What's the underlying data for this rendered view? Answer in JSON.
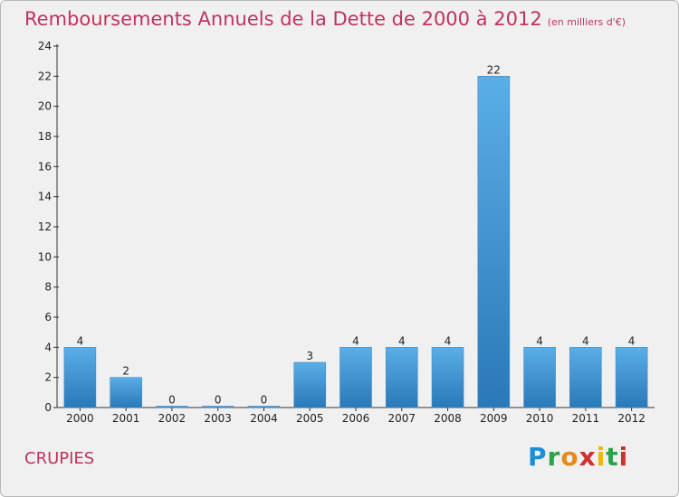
{
  "title": "Remboursements Annuels de la Dette de 2000 à 2012",
  "unit": "(en milliers d'€)",
  "place": "CRUPIES",
  "logo": "Proxiti",
  "colors": {
    "title": "#c0335c",
    "bar_top": "#5aaee6",
    "bar_bottom": "#2a78b8",
    "background": "#f0f0f0"
  },
  "chart_data": {
    "type": "bar",
    "title": "Remboursements Annuels de la Dette de 2000 à 2012",
    "xlabel": "",
    "ylabel": "",
    "categories": [
      "2000",
      "2001",
      "2002",
      "2003",
      "2004",
      "2005",
      "2006",
      "2007",
      "2008",
      "2009",
      "2010",
      "2011",
      "2012"
    ],
    "values": [
      4,
      2,
      0,
      0,
      0,
      3,
      4,
      4,
      4,
      22,
      4,
      4,
      4
    ],
    "ylim": [
      0,
      24
    ],
    "yticks": [
      0,
      2,
      4,
      6,
      8,
      10,
      12,
      14,
      16,
      18,
      20,
      22,
      24
    ],
    "grid": false,
    "legend": "none"
  }
}
